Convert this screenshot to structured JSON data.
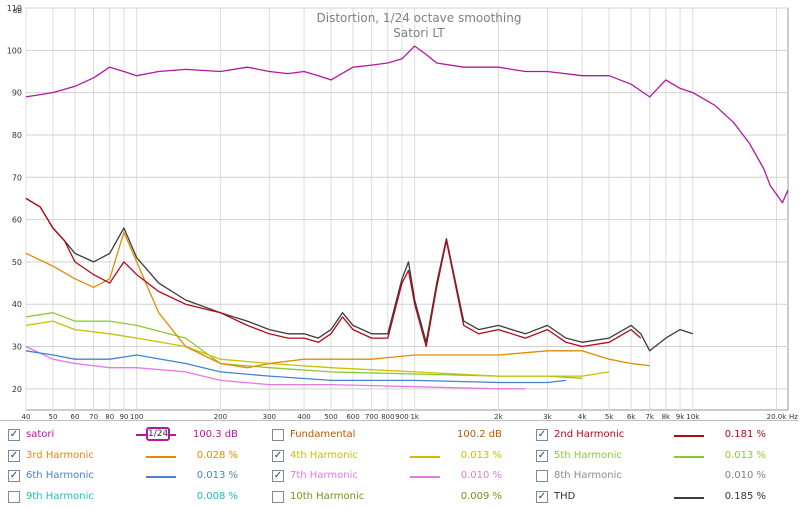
{
  "chart_data": {
    "type": "line",
    "title": "Distortion, 1/24 octave smoothing",
    "subtitle": "Satori LT",
    "yunit": "dB",
    "xunit": "Hz",
    "xscale": "log",
    "xlim": [
      40,
      22000
    ],
    "ylim": [
      15,
      110
    ],
    "yticks": [
      20,
      30,
      40,
      50,
      60,
      70,
      80,
      90,
      100,
      110
    ],
    "xticks": [
      {
        "v": 40,
        "l": "40"
      },
      {
        "v": 50,
        "l": "50"
      },
      {
        "v": 60,
        "l": "60"
      },
      {
        "v": 70,
        "l": "70"
      },
      {
        "v": 80,
        "l": "80"
      },
      {
        "v": 90,
        "l": "90"
      },
      {
        "v": 100,
        "l": "100"
      },
      {
        "v": 200,
        "l": "200"
      },
      {
        "v": 300,
        "l": "300"
      },
      {
        "v": 400,
        "l": "400"
      },
      {
        "v": 500,
        "l": "500"
      },
      {
        "v": 600,
        "l": "600"
      },
      {
        "v": 700,
        "l": "700"
      },
      {
        "v": 800,
        "l": "800"
      },
      {
        "v": 900,
        "l": "900"
      },
      {
        "v": 1000,
        "l": "1k"
      },
      {
        "v": 2000,
        "l": "2k"
      },
      {
        "v": 3000,
        "l": "3k"
      },
      {
        "v": 4000,
        "l": "4k"
      },
      {
        "v": 5000,
        "l": "5k"
      },
      {
        "v": 6000,
        "l": "6k"
      },
      {
        "v": 7000,
        "l": "7k"
      },
      {
        "v": 8000,
        "l": "8k"
      },
      {
        "v": 9000,
        "l": "9k"
      },
      {
        "v": 10000,
        "l": "10k"
      },
      {
        "v": 20000,
        "l": "20.0k"
      }
    ],
    "grid": true,
    "series": [
      {
        "name": "satori",
        "color": "#b2189e",
        "x": [
          40,
          50,
          60,
          70,
          80,
          90,
          100,
          120,
          150,
          200,
          250,
          300,
          350,
          400,
          450,
          500,
          600,
          700,
          800,
          900,
          1000,
          1100,
          1200,
          1500,
          2000,
          2500,
          3000,
          4000,
          5000,
          6000,
          7000,
          8000,
          9000,
          10000,
          12000,
          14000,
          16000,
          18000,
          19000,
          20000,
          21000,
          22000
        ],
        "y": [
          89,
          90,
          91.5,
          93.5,
          96,
          95,
          94,
          95,
          95.5,
          95,
          96,
          95,
          94.5,
          95,
          94,
          93,
          96,
          96.5,
          97,
          98,
          101,
          99,
          97,
          96,
          96,
          95,
          95,
          94,
          94,
          92,
          89,
          93,
          91,
          90,
          87,
          83,
          78,
          72,
          68,
          66,
          64,
          67
        ]
      },
      {
        "name": "2nd Harmonic",
        "color": "#b30a1a",
        "x": [
          40,
          45,
          50,
          55,
          60,
          70,
          80,
          90,
          100,
          120,
          150,
          200,
          250,
          300,
          350,
          400,
          450,
          500,
          550,
          600,
          700,
          800,
          900,
          950,
          1000,
          1100,
          1200,
          1300,
          1500,
          1700,
          2000,
          2500,
          3000,
          3500,
          4000,
          5000,
          6000,
          6500
        ],
        "y": [
          65,
          63,
          58,
          55,
          50,
          47,
          45,
          50,
          47,
          43,
          40,
          38,
          35,
          33,
          32,
          32,
          31,
          33,
          37,
          34,
          32,
          32,
          45,
          48,
          40,
          30,
          44,
          55,
          35,
          33,
          34,
          32,
          34,
          31,
          30,
          31,
          34,
          32
        ]
      },
      {
        "name": "3rd Harmonic",
        "color": "#e08c00",
        "x": [
          40,
          50,
          60,
          70,
          80,
          90,
          100,
          120,
          150,
          200,
          250,
          300,
          400,
          500,
          700,
          1000,
          1500,
          2000,
          3000,
          4000,
          5000,
          6000,
          7000
        ],
        "y": [
          52,
          49,
          46,
          44,
          46,
          57,
          50,
          38,
          30,
          26,
          25,
          26,
          27,
          27,
          27,
          28,
          28,
          28,
          29,
          29,
          27,
          26,
          25.5
        ]
      },
      {
        "name": "4th Harmonic",
        "color": "#c8c000",
        "x": [
          40,
          50,
          60,
          80,
          100,
          150,
          200,
          300,
          500,
          1000,
          2000,
          3000,
          4000,
          5000
        ],
        "y": [
          35,
          36,
          34,
          33,
          32,
          30,
          27,
          26,
          25,
          24,
          23,
          23,
          23,
          24
        ]
      },
      {
        "name": "5th Harmonic",
        "color": "#8cc832",
        "x": [
          40,
          50,
          60,
          80,
          100,
          150,
          200,
          300,
          500,
          1000,
          2000,
          3000,
          4000
        ],
        "y": [
          37,
          38,
          36,
          36,
          35,
          32,
          26,
          25,
          24,
          23.5,
          23,
          23,
          22.5
        ]
      },
      {
        "name": "6th Harmonic",
        "color": "#4682d2",
        "x": [
          40,
          50,
          60,
          80,
          100,
          150,
          200,
          300,
          500,
          1000,
          2000,
          3000,
          3500
        ],
        "y": [
          29,
          28,
          27,
          27,
          28,
          26,
          24,
          23,
          22,
          22,
          21.5,
          21.5,
          22
        ]
      },
      {
        "name": "7th Harmonic",
        "color": "#e678e6",
        "x": [
          40,
          50,
          60,
          80,
          100,
          150,
          200,
          300,
          500,
          1000,
          2000,
          2500
        ],
        "y": [
          30,
          27,
          26,
          25,
          25,
          24,
          22,
          21,
          21,
          20.5,
          20,
          20
        ]
      },
      {
        "name": "THD",
        "color": "#3c3c3c",
        "x": [
          40,
          45,
          50,
          55,
          60,
          70,
          80,
          90,
          100,
          120,
          150,
          200,
          250,
          300,
          350,
          400,
          450,
          500,
          550,
          600,
          700,
          800,
          900,
          950,
          1000,
          1100,
          1200,
          1300,
          1500,
          1700,
          2000,
          2500,
          3000,
          3500,
          4000,
          5000,
          6000,
          6500,
          7000,
          8000,
          9000,
          10000
        ],
        "y": [
          65,
          63,
          58,
          55,
          52,
          50,
          52,
          58,
          51,
          45,
          41,
          38,
          36,
          34,
          33,
          33,
          32,
          34,
          38,
          35,
          33,
          33,
          46,
          50,
          41,
          31,
          45,
          55.5,
          36,
          34,
          35,
          33,
          35,
          32,
          31,
          32,
          35,
          33,
          29,
          32,
          34,
          33
        ]
      }
    ]
  },
  "legend": {
    "items": [
      {
        "label": "satori",
        "value": "100.3 dB",
        "color": "#b2189e",
        "checked": true
      },
      {
        "label": "Fundamental",
        "value": "100.2 dB",
        "color": "#b30a1a",
        "checked": false
      },
      {
        "label": "2nd Harmonic",
        "value": "0.181 %",
        "color": "#b30a1a",
        "checked": true
      },
      {
        "label": "3rd Harmonic",
        "value": "0.028 %",
        "color": "#e08c00",
        "checked": true
      },
      {
        "label": "4th Harmonic",
        "value": "0.013 %",
        "color": "#c8c000",
        "checked": true
      },
      {
        "label": "5th Harmonic",
        "value": "0.013 %",
        "color": "#8cc832",
        "checked": true
      },
      {
        "label": "6th Harmonic",
        "value": "0.013 %",
        "color": "#4682d2",
        "checked": true
      },
      {
        "label": "7th Harmonic",
        "value": "0.010 %",
        "color": "#e678e6",
        "checked": true
      },
      {
        "label": "8th Harmonic",
        "value": "0.010 %",
        "color": "#8c8c8c",
        "checked": false
      },
      {
        "label": "9th Harmonic",
        "value": "0.008 %",
        "color": "#1ebeb4",
        "checked": false
      },
      {
        "label": "10th Harmonic",
        "value": "0.009 %",
        "color": "#6e9614",
        "checked": false
      },
      {
        "label": "THD",
        "value": "0.185 %",
        "color": "#3c3c3c",
        "checked": true
      }
    ],
    "smoothing_label": "1/24"
  }
}
